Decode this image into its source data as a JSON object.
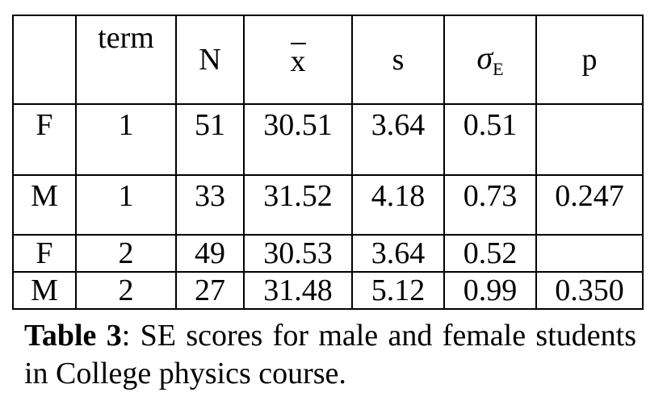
{
  "table": {
    "headers": {
      "blank": "",
      "term": "term",
      "n": "N",
      "mean": "x",
      "s": "s",
      "sigma": "σ",
      "sigma_sub": "E",
      "p": "p"
    },
    "rows": [
      {
        "sex": "F",
        "term": "1",
        "n": "51",
        "mean": "30.51",
        "s": "3.64",
        "sigma_e": "0.51",
        "p": ""
      },
      {
        "sex": "M",
        "term": "1",
        "n": "33",
        "mean": "31.52",
        "s": "4.18",
        "sigma_e": "0.73",
        "p": "0.247"
      },
      {
        "sex": "F",
        "term": "2",
        "n": "49",
        "mean": "30.53",
        "s": "3.64",
        "sigma_e": "0.52",
        "p": ""
      },
      {
        "sex": "M",
        "term": "2",
        "n": "27",
        "mean": "31.48",
        "s": "5.12",
        "sigma_e": "0.99",
        "p": "0.350"
      }
    ]
  },
  "caption": {
    "label": "Table 3",
    "text": ": SE scores for male and female students in College physics course."
  }
}
